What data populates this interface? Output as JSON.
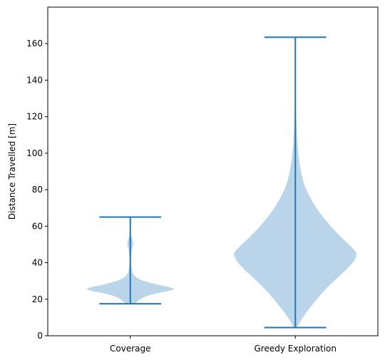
{
  "chart_data": {
    "type": "violin",
    "title": "",
    "xlabel": "",
    "ylabel": "Distance Travelled [m]",
    "ylim": [
      0,
      180
    ],
    "yticks": [
      0,
      20,
      40,
      60,
      80,
      100,
      120,
      140,
      160
    ],
    "grid": false,
    "categories": [
      "Coverage",
      "Greedy Exploration"
    ],
    "violins": [
      {
        "category": "Coverage",
        "min": 17.5,
        "max": 65.0,
        "density": [
          [
            17.5,
            0.08
          ],
          [
            19,
            0.12
          ],
          [
            21,
            0.2
          ],
          [
            23,
            0.38
          ],
          [
            24.5,
            0.62
          ],
          [
            25.5,
            0.72
          ],
          [
            26.5,
            0.65
          ],
          [
            28,
            0.44
          ],
          [
            29.5,
            0.26
          ],
          [
            31,
            0.14
          ],
          [
            33,
            0.06
          ],
          [
            35,
            0.03
          ],
          [
            38,
            0.015
          ],
          [
            42,
            0.01
          ],
          [
            46,
            0.02
          ],
          [
            49,
            0.04
          ],
          [
            51,
            0.05
          ],
          [
            53,
            0.03
          ],
          [
            56,
            0.006
          ],
          [
            60,
            0.002
          ],
          [
            65,
            0.0
          ]
        ]
      },
      {
        "category": "Greedy Exploration",
        "min": 4.5,
        "max": 163.5,
        "density": [
          [
            4.5,
            0.03
          ],
          [
            8,
            0.08
          ],
          [
            13,
            0.18
          ],
          [
            18,
            0.3
          ],
          [
            23,
            0.42
          ],
          [
            28,
            0.56
          ],
          [
            33,
            0.72
          ],
          [
            38,
            0.88
          ],
          [
            42,
            0.97
          ],
          [
            45,
            1.0
          ],
          [
            48,
            0.93
          ],
          [
            52,
            0.8
          ],
          [
            57,
            0.65
          ],
          [
            62,
            0.52
          ],
          [
            67,
            0.4
          ],
          [
            72,
            0.3
          ],
          [
            77,
            0.22
          ],
          [
            82,
            0.15
          ],
          [
            88,
            0.1
          ],
          [
            95,
            0.065
          ],
          [
            102,
            0.04
          ],
          [
            110,
            0.025
          ],
          [
            118,
            0.015
          ],
          [
            126,
            0.008
          ],
          [
            135,
            0.004
          ],
          [
            145,
            0.002
          ],
          [
            155,
            0.001
          ],
          [
            163.5,
            0.0
          ]
        ]
      }
    ],
    "colors": {
      "body": "#bad5ea",
      "lines": "#1f77b4"
    }
  }
}
